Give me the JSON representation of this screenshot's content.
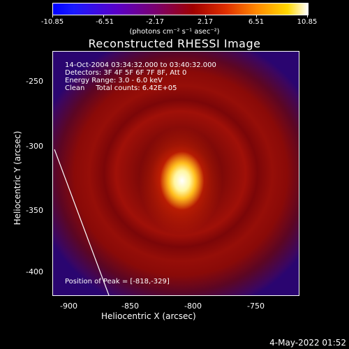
{
  "colorbar": {
    "ticks": [
      "-10.85",
      "-6.51",
      "-2.17",
      "2.17",
      "6.51",
      "10.85"
    ],
    "units": "(photons cm⁻² s⁻¹ asec⁻²)"
  },
  "title": "Reconstructed RHESSI Image",
  "info": {
    "time": "14-Oct-2004 03:34:32.000 to 03:40:32.000",
    "detectors": "Detectors: 3F 4F 5F 6F 7F 8F, Att 0",
    "energy": "Energy Range: 3.0 - 6.0 keV",
    "clean": "Clean     Total counts: 6.42E+05",
    "peak": "Position of Peak = [-818,-329]"
  },
  "axes": {
    "xlabel": "Heliocentric X (arcsec)",
    "ylabel": "Heliocentric Y (arcsec)",
    "xticks": [
      "-900",
      "-850",
      "-800",
      "-750"
    ],
    "yticks": [
      "-250",
      "-300",
      "-350",
      "-400"
    ]
  },
  "footer": {
    "date": "4-May-2022 01:52"
  }
}
